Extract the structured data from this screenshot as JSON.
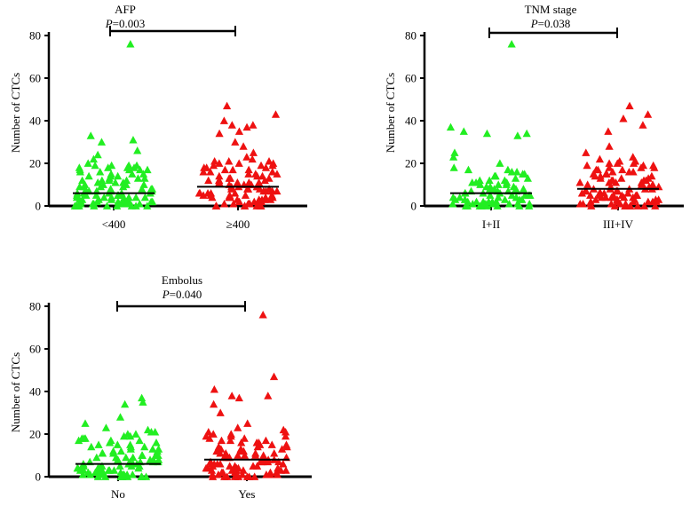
{
  "colors": {
    "group1": "#22ee22",
    "group2": "#ee1111",
    "axis": "#000000"
  },
  "chart_data": [
    {
      "type": "scatter",
      "title": "AFP",
      "p_prefix": "P",
      "p_value": "=0.003",
      "ylabel": "Number of CTCs",
      "ylim": [
        0,
        80
      ],
      "yticks": [
        "0",
        "20",
        "40",
        "60",
        "80"
      ],
      "categories": [
        "<400",
        "≥400"
      ],
      "medians": [
        6,
        9
      ],
      "series": [
        {
          "category": "<400",
          "values": [
            76,
            33,
            31,
            30,
            26,
            24,
            22,
            20,
            19,
            19,
            19,
            19,
            18,
            18,
            18,
            18,
            17,
            17,
            17,
            17,
            16,
            16,
            15,
            15,
            15,
            14,
            14,
            14,
            13,
            13,
            13,
            12,
            12,
            12,
            12,
            11,
            11,
            11,
            10,
            10,
            10,
            10,
            9,
            9,
            9,
            9,
            8,
            8,
            8,
            8,
            7,
            7,
            7,
            7,
            7,
            6,
            6,
            6,
            6,
            6,
            5,
            5,
            5,
            5,
            5,
            5,
            4,
            4,
            4,
            4,
            4,
            4,
            3,
            3,
            3,
            3,
            3,
            3,
            3,
            2,
            2,
            2,
            2,
            2,
            2,
            2,
            1,
            1,
            1,
            1,
            1,
            1,
            1,
            1,
            0,
            0,
            0,
            0,
            0,
            0,
            0,
            0,
            0,
            0
          ]
        },
        {
          "category": "≥400",
          "values": [
            47,
            43,
            40,
            38,
            38,
            37,
            35,
            34,
            30,
            28,
            25,
            23,
            22,
            21,
            21,
            21,
            20,
            20,
            20,
            19,
            19,
            19,
            18,
            18,
            18,
            17,
            17,
            17,
            16,
            16,
            16,
            15,
            15,
            15,
            14,
            14,
            14,
            13,
            13,
            13,
            12,
            12,
            12,
            12,
            11,
            11,
            11,
            11,
            10,
            10,
            10,
            10,
            9,
            9,
            9,
            9,
            8,
            8,
            8,
            8,
            8,
            7,
            7,
            7,
            7,
            7,
            6,
            6,
            6,
            6,
            6,
            5,
            5,
            5,
            5,
            5,
            4,
            4,
            4,
            4,
            4,
            3,
            3,
            3,
            3,
            3,
            2,
            2,
            2,
            2,
            2,
            1,
            1,
            1,
            1,
            1,
            0,
            0,
            0,
            0,
            0,
            0,
            0
          ]
        }
      ]
    },
    {
      "type": "scatter",
      "title": "TNM stage",
      "p_prefix": "P",
      "p_value": "=0.038",
      "ylabel": "Number of CTCs",
      "ylim": [
        0,
        80
      ],
      "yticks": [
        "0",
        "20",
        "40",
        "60",
        "80"
      ],
      "categories": [
        "I+II",
        "III+IV"
      ],
      "medians": [
        6,
        8
      ],
      "series": [
        {
          "category": "I+II",
          "values": [
            76,
            37,
            35,
            34,
            34,
            33,
            25,
            23,
            20,
            18,
            17,
            17,
            16,
            16,
            15,
            15,
            14,
            14,
            13,
            13,
            12,
            12,
            12,
            11,
            11,
            11,
            10,
            10,
            10,
            9,
            9,
            9,
            8,
            8,
            8,
            8,
            7,
            7,
            7,
            7,
            6,
            6,
            6,
            6,
            5,
            5,
            5,
            5,
            5,
            4,
            4,
            4,
            4,
            4,
            3,
            3,
            3,
            3,
            3,
            3,
            2,
            2,
            2,
            2,
            2,
            2,
            1,
            1,
            1,
            1,
            1,
            1,
            1,
            0,
            0,
            0,
            0,
            0,
            0,
            0,
            0
          ]
        },
        {
          "category": "III+IV",
          "values": [
            47,
            43,
            41,
            38,
            35,
            28,
            25,
            23,
            22,
            21,
            21,
            20,
            20,
            20,
            19,
            19,
            19,
            18,
            18,
            18,
            17,
            17,
            17,
            16,
            16,
            16,
            15,
            15,
            15,
            14,
            14,
            14,
            13,
            13,
            13,
            12,
            12,
            12,
            12,
            11,
            11,
            11,
            11,
            10,
            10,
            10,
            10,
            9,
            9,
            9,
            9,
            8,
            8,
            8,
            8,
            8,
            7,
            7,
            7,
            7,
            7,
            6,
            6,
            6,
            6,
            6,
            5,
            5,
            5,
            5,
            5,
            5,
            4,
            4,
            4,
            4,
            4,
            4,
            3,
            3,
            3,
            3,
            3,
            3,
            2,
            2,
            2,
            2,
            2,
            2,
            1,
            1,
            1,
            1,
            1,
            1,
            0,
            0,
            0,
            0,
            0,
            0,
            0,
            0,
            0
          ]
        }
      ]
    },
    {
      "type": "scatter",
      "title": "Embolus",
      "p_prefix": "P",
      "p_value": "=0.040",
      "ylabel": "Number of CTCs",
      "ylim": [
        0,
        80
      ],
      "yticks": [
        "0",
        "20",
        "40",
        "60",
        "80"
      ],
      "categories": [
        "No",
        "Yes"
      ],
      "medians": [
        6,
        8
      ],
      "series": [
        {
          "category": "No",
          "values": [
            37,
            35,
            34,
            28,
            25,
            23,
            22,
            21,
            21,
            20,
            20,
            19,
            19,
            18,
            18,
            18,
            17,
            17,
            17,
            16,
            16,
            15,
            15,
            15,
            14,
            14,
            14,
            13,
            13,
            13,
            12,
            12,
            12,
            11,
            11,
            11,
            10,
            10,
            10,
            10,
            9,
            9,
            9,
            9,
            8,
            8,
            8,
            8,
            7,
            7,
            7,
            7,
            7,
            6,
            6,
            6,
            6,
            6,
            5,
            5,
            5,
            5,
            5,
            4,
            4,
            4,
            4,
            4,
            4,
            3,
            3,
            3,
            3,
            3,
            3,
            2,
            2,
            2,
            2,
            2,
            2,
            1,
            1,
            1,
            1,
            1,
            1,
            1,
            0,
            0,
            0,
            0,
            0,
            0,
            0,
            0
          ]
        },
        {
          "category": "Yes",
          "values": [
            76,
            47,
            41,
            38,
            38,
            37,
            34,
            30,
            25,
            23,
            22,
            21,
            21,
            20,
            20,
            19,
            19,
            19,
            18,
            18,
            17,
            17,
            17,
            16,
            16,
            16,
            15,
            15,
            15,
            14,
            14,
            14,
            13,
            13,
            13,
            12,
            12,
            12,
            11,
            11,
            11,
            11,
            10,
            10,
            10,
            10,
            9,
            9,
            9,
            9,
            8,
            8,
            8,
            8,
            7,
            7,
            7,
            7,
            7,
            6,
            6,
            6,
            6,
            6,
            5,
            5,
            5,
            5,
            5,
            4,
            4,
            4,
            4,
            4,
            3,
            3,
            3,
            3,
            3,
            3,
            2,
            2,
            2,
            2,
            2,
            1,
            1,
            1,
            1,
            1,
            1,
            0,
            0,
            0,
            0,
            0,
            0,
            0,
            0
          ]
        }
      ]
    }
  ]
}
